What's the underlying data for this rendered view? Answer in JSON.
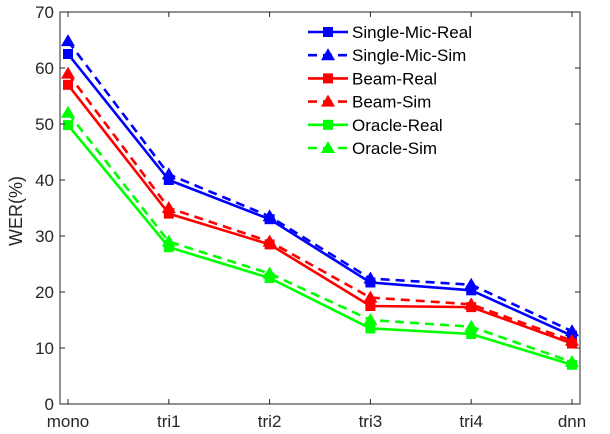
{
  "chart_data": {
    "type": "line",
    "title": "",
    "xlabel": "",
    "ylabel": "WER(%)",
    "categories": [
      "mono",
      "tri1",
      "tri2",
      "tri3",
      "tri4",
      "dnn"
    ],
    "ylim": [
      0,
      70
    ],
    "yticks": [
      0,
      10,
      20,
      30,
      40,
      50,
      60,
      70
    ],
    "grid": false,
    "legend_position": "top-right",
    "series": [
      {
        "name": "Single-Mic-Real",
        "color": "#0000ff",
        "dashed": false,
        "marker": "square",
        "values": [
          62.5,
          40.0,
          33.0,
          21.7,
          20.3,
          12.2
        ]
      },
      {
        "name": "Single-Mic-Sim",
        "color": "#0000ff",
        "dashed": true,
        "marker": "triangle",
        "values": [
          64.8,
          41.0,
          33.5,
          22.4,
          21.3,
          13.0
        ]
      },
      {
        "name": "Beam-Real",
        "color": "#ff0000",
        "dashed": false,
        "marker": "square",
        "values": [
          57.0,
          34.0,
          28.5,
          17.5,
          17.3,
          10.8
        ]
      },
      {
        "name": "Beam-Sim",
        "color": "#ff0000",
        "dashed": true,
        "marker": "triangle",
        "values": [
          59.0,
          35.0,
          29.0,
          19.0,
          17.8,
          11.3
        ]
      },
      {
        "name": "Oracle-Real",
        "color": "#00ff00",
        "dashed": false,
        "marker": "square",
        "values": [
          49.8,
          28.0,
          22.5,
          13.5,
          12.5,
          7.0
        ]
      },
      {
        "name": "Oracle-Sim",
        "color": "#00ff00",
        "dashed": true,
        "marker": "triangle",
        "values": [
          52.0,
          29.0,
          23.3,
          15.0,
          13.8,
          7.5
        ]
      }
    ]
  }
}
